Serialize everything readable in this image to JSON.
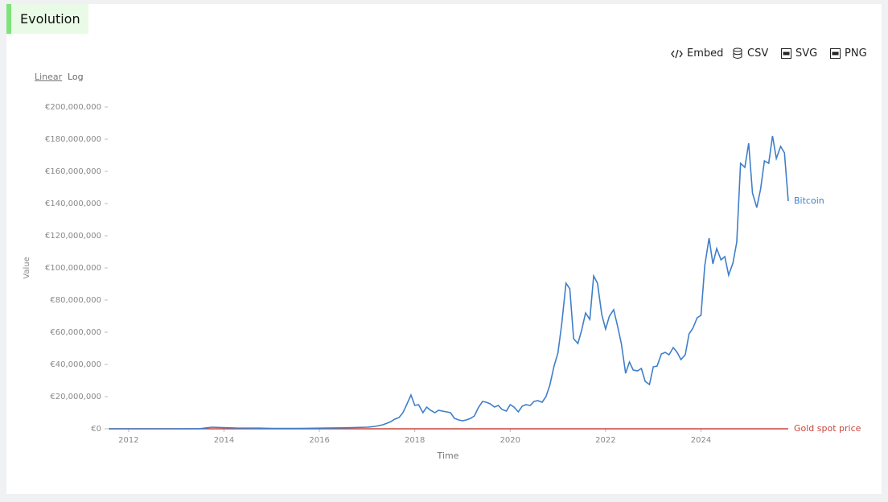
{
  "header": {
    "title": "Evolution"
  },
  "toolbar": [
    "Embed",
    "CSV",
    "SVG",
    "PNG"
  ],
  "scale_options": [
    "Linear",
    "Log"
  ],
  "chart_data": {
    "type": "line",
    "x_label": "Time",
    "y_label": "Value",
    "x": [
      2011.58,
      2012,
      2012.5,
      2013,
      2013.5,
      2013.75,
      2013.92,
      2014.25,
      2014.75,
      2015,
      2015.5,
      2016,
      2016.5,
      2016.75,
      2017,
      2017.08,
      2017.17,
      2017.25,
      2017.33,
      2017.42,
      2017.5,
      2017.58,
      2017.67,
      2017.75,
      2017.83,
      2017.92,
      2018,
      2018.08,
      2018.17,
      2018.25,
      2018.33,
      2018.42,
      2018.5,
      2018.58,
      2018.67,
      2018.75,
      2018.83,
      2018.92,
      2019,
      2019.08,
      2019.17,
      2019.25,
      2019.33,
      2019.42,
      2019.5,
      2019.58,
      2019.67,
      2019.75,
      2019.83,
      2019.92,
      2020,
      2020.08,
      2020.17,
      2020.25,
      2020.33,
      2020.42,
      2020.5,
      2020.58,
      2020.67,
      2020.75,
      2020.83,
      2020.92,
      2021,
      2021.08,
      2021.17,
      2021.25,
      2021.33,
      2021.42,
      2021.5,
      2021.58,
      2021.67,
      2021.75,
      2021.83,
      2021.92,
      2022,
      2022.08,
      2022.17,
      2022.25,
      2022.33,
      2022.42,
      2022.5,
      2022.58,
      2022.67,
      2022.75,
      2022.83,
      2022.92,
      2023,
      2023.08,
      2023.17,
      2023.25,
      2023.33,
      2023.42,
      2023.5,
      2023.58,
      2023.67,
      2023.75,
      2023.83,
      2023.92,
      2024,
      2024.08,
      2024.17,
      2024.25,
      2024.33,
      2024.42,
      2024.5,
      2024.58,
      2024.67,
      2024.75,
      2024.83,
      2024.92,
      2025,
      2025.08,
      2025.17,
      2025.25,
      2025.33,
      2025.42,
      2025.5,
      2025.58,
      2025.67,
      2025.75,
      2025.83
    ],
    "series": [
      {
        "name": "Bitcoin",
        "color": "#3f7fc9",
        "values": [
          0,
          0,
          0,
          0,
          100000.0,
          1000000.0,
          800000.0,
          500000.0,
          400000.0,
          200000.0,
          200000.0,
          400000.0,
          600000.0,
          800000.0,
          1000000.0,
          1200000.0,
          1500000.0,
          2000000.0,
          2500000.0,
          3500000.0,
          4500000.0,
          6000000.0,
          7000000.0,
          10000000.0,
          15000000.0,
          21000000.0,
          14500000.0,
          15000000.0,
          10000000.0,
          13500000.0,
          11500000.0,
          10000000.0,
          11500000.0,
          11000000.0,
          10500000.0,
          10000000.0,
          6500000.0,
          5500000.0,
          5000000.0,
          5500000.0,
          6500000.0,
          8000000.0,
          13000000.0,
          17000000.0,
          16500000.0,
          15500000.0,
          13500000.0,
          14500000.0,
          12000000.0,
          11000000.0,
          15000000.0,
          13500000.0,
          10500000.0,
          14000000.0,
          15000000.0,
          14500000.0,
          17000000.0,
          17500000.0,
          16500000.0,
          20000000.0,
          27000000.0,
          39000000.0,
          47000000.0,
          65000000.0,
          90500000.0,
          87000000.0,
          56000000.0,
          53000000.0,
          61500000.0,
          72000000.0,
          68000000.0,
          95000000.0,
          90500000.0,
          71000000.0,
          62000000.0,
          70000000.0,
          74000000.0,
          64000000.0,
          53000000.0,
          34500000.0,
          41500000.0,
          36500000.0,
          36000000.0,
          37500000.0,
          29500000.0,
          27500000.0,
          38500000.0,
          39000000.0,
          46500000.0,
          47500000.0,
          46000000.0,
          50500000.0,
          47500000.0,
          43000000.0,
          46000000.0,
          59000000.0,
          62500000.0,
          69000000.0,
          70500000.0,
          101500000.0,
          118500000.0,
          102500000.0,
          112000000.0,
          105000000.0,
          107000000.0,
          95500000.0,
          103000000.0,
          116000000.0,
          165000000.0,
          162500000.0,
          177500000.0,
          146500000.0,
          137500000.0,
          149000000.0,
          166500000.0,
          165000000.0,
          182000000.0,
          168000000.0,
          175500000.0,
          171500000.0,
          141500000.0
        ]
      },
      {
        "name": "Gold spot price",
        "color": "#c8463c",
        "values": [
          0,
          0,
          0,
          0,
          0,
          0,
          0,
          0,
          0,
          0,
          0,
          0,
          0,
          0,
          0,
          0,
          0,
          0,
          0,
          0,
          0,
          0,
          0,
          0,
          0,
          0,
          0,
          0,
          0,
          0,
          0,
          0,
          0,
          0,
          0,
          0,
          0,
          0,
          0,
          0,
          0,
          0,
          0,
          0,
          0,
          0,
          0,
          0,
          0,
          0,
          0,
          0,
          0,
          0,
          0,
          0,
          0,
          0,
          0,
          0,
          0,
          0,
          0,
          0,
          0,
          0,
          0,
          0,
          0,
          0,
          0,
          0,
          0,
          0,
          0,
          0,
          0,
          0,
          0,
          0,
          0,
          0,
          0,
          0,
          0,
          0,
          0,
          0,
          0,
          0,
          0,
          0,
          0,
          0,
          0,
          0,
          0,
          0,
          0,
          0,
          0,
          0,
          0,
          0,
          0,
          0,
          0,
          0,
          0,
          0,
          0,
          0,
          0,
          0,
          0,
          0,
          0,
          0,
          0,
          0,
          0
        ]
      }
    ],
    "xlim": [
      2011.58,
      2025.83
    ],
    "xticks": [
      2012,
      2014,
      2016,
      2018,
      2020,
      2022,
      2024
    ],
    "ylim": [
      0,
      200000000
    ],
    "yticks": [
      {
        "value": 0,
        "label": "€0"
      },
      {
        "value": 20000000,
        "label": "€20,000,000"
      },
      {
        "value": 40000000,
        "label": "€40,000,000"
      },
      {
        "value": 60000000,
        "label": "€60,000,000"
      },
      {
        "value": 80000000,
        "label": "€80,000,000"
      },
      {
        "value": 100000000,
        "label": "€100,000,000"
      },
      {
        "value": 120000000,
        "label": "€120,000,000"
      },
      {
        "value": 140000000,
        "label": "€140,000,000"
      },
      {
        "value": 160000000,
        "label": "€160,000,000"
      },
      {
        "value": 180000000,
        "label": "€180,000,000"
      },
      {
        "value": 200000000,
        "label": "€200,000,000"
      }
    ],
    "grid": false,
    "log_scale": false
  }
}
